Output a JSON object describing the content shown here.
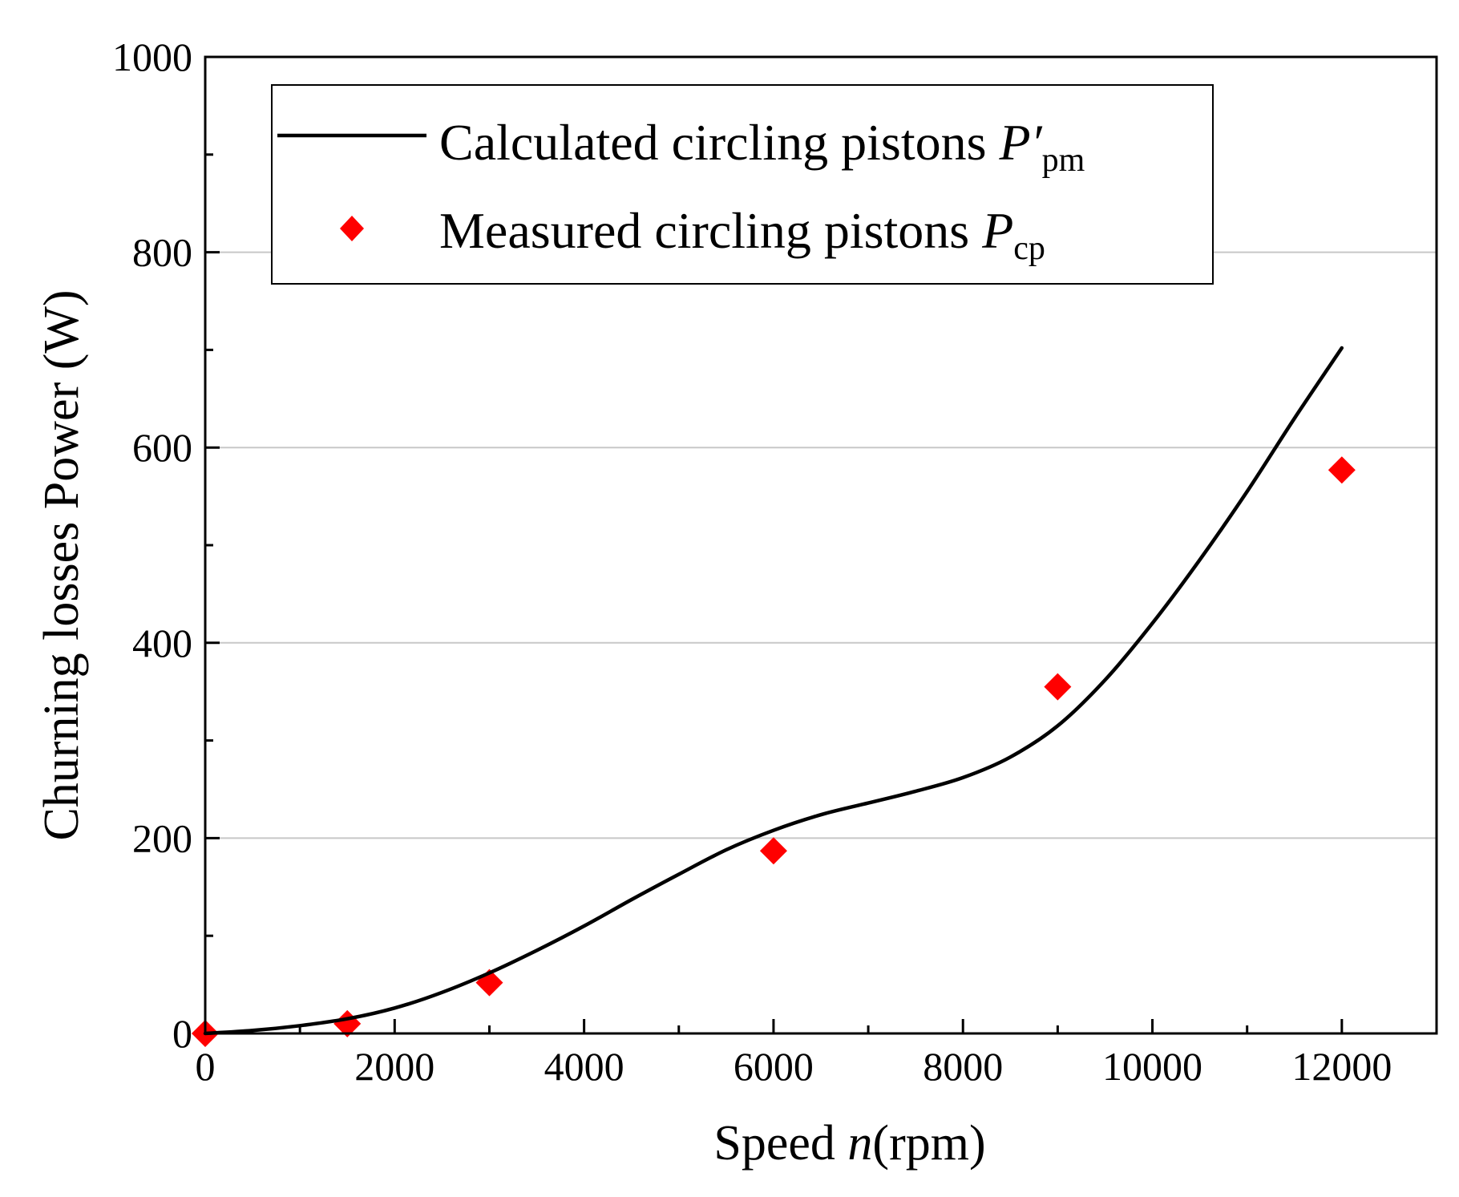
{
  "chart_data": {
    "type": "line",
    "title": "",
    "xlabel": {
      "prefix": "Speed ",
      "symbol": "n",
      "suffix": "(rpm)"
    },
    "ylabel": "Churning losses Power (W)",
    "xlim": [
      0,
      13000
    ],
    "ylim": [
      0,
      1000
    ],
    "x_ticks": [
      0,
      2000,
      4000,
      6000,
      8000,
      10000,
      12000
    ],
    "x_tick_labels": [
      "0",
      "2000",
      "4000",
      "6000",
      "8000",
      "10000",
      "12000"
    ],
    "y_ticks": [
      0,
      200,
      400,
      600,
      800,
      1000
    ],
    "y_tick_labels": [
      "0",
      "200",
      "400",
      "600",
      "800",
      "1000"
    ],
    "grid": {
      "horizontal": true,
      "vertical": false
    },
    "legend_position": "top-left",
    "series": [
      {
        "name": "Calculated circling pistons",
        "symbol": "P′",
        "subscript": "pm",
        "kind": "line",
        "color": "#000000",
        "x": [
          0,
          500,
          1000,
          1500,
          2000,
          2500,
          3000,
          3500,
          4000,
          4500,
          5000,
          5500,
          6000,
          6500,
          7000,
          7500,
          8000,
          8500,
          9000,
          9500,
          10000,
          10500,
          11000,
          11500,
          12000
        ],
        "y": [
          0,
          3,
          8,
          15,
          26,
          42,
          62,
          85,
          110,
          137,
          163,
          188,
          208,
          224,
          236,
          248,
          262,
          283,
          315,
          362,
          420,
          485,
          555,
          630,
          702
        ]
      },
      {
        "name": "Measured circling pistons",
        "symbol": "P",
        "subscript": "cp",
        "kind": "scatter",
        "marker": "diamond",
        "color": "#ff0000",
        "x": [
          0,
          1500,
          3000,
          6000,
          9000,
          12000
        ],
        "y": [
          0,
          10,
          52,
          187,
          355,
          577
        ]
      }
    ]
  }
}
